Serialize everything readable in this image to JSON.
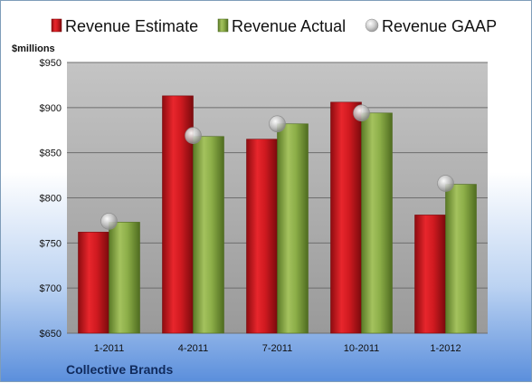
{
  "chart_data": {
    "type": "bar",
    "categories": [
      "1-2011",
      "4-2011",
      "7-2011",
      "10-2011",
      "1-2012"
    ],
    "series": [
      {
        "name": "Revenue Estimate",
        "kind": "bar",
        "color": "#d4161e",
        "values": [
          762,
          913,
          865,
          906,
          781
        ]
      },
      {
        "name": "Revenue Actual",
        "kind": "bar",
        "color": "#8fb24a",
        "values": [
          773,
          868,
          882,
          894,
          815
        ]
      },
      {
        "name": "Revenue GAAP",
        "kind": "marker",
        "color": "#c0c0c0",
        "values": [
          774,
          869,
          882,
          894,
          816
        ]
      }
    ],
    "ylabel": "$millions",
    "ylim": [
      650,
      950
    ],
    "yticks": [
      650,
      700,
      750,
      800,
      850,
      900,
      950
    ],
    "ytick_labels": [
      "$650",
      "$700",
      "$750",
      "$800",
      "$850",
      "$900",
      "$950"
    ],
    "grid": true,
    "legend_position": "top",
    "company": "Collective Brands"
  }
}
